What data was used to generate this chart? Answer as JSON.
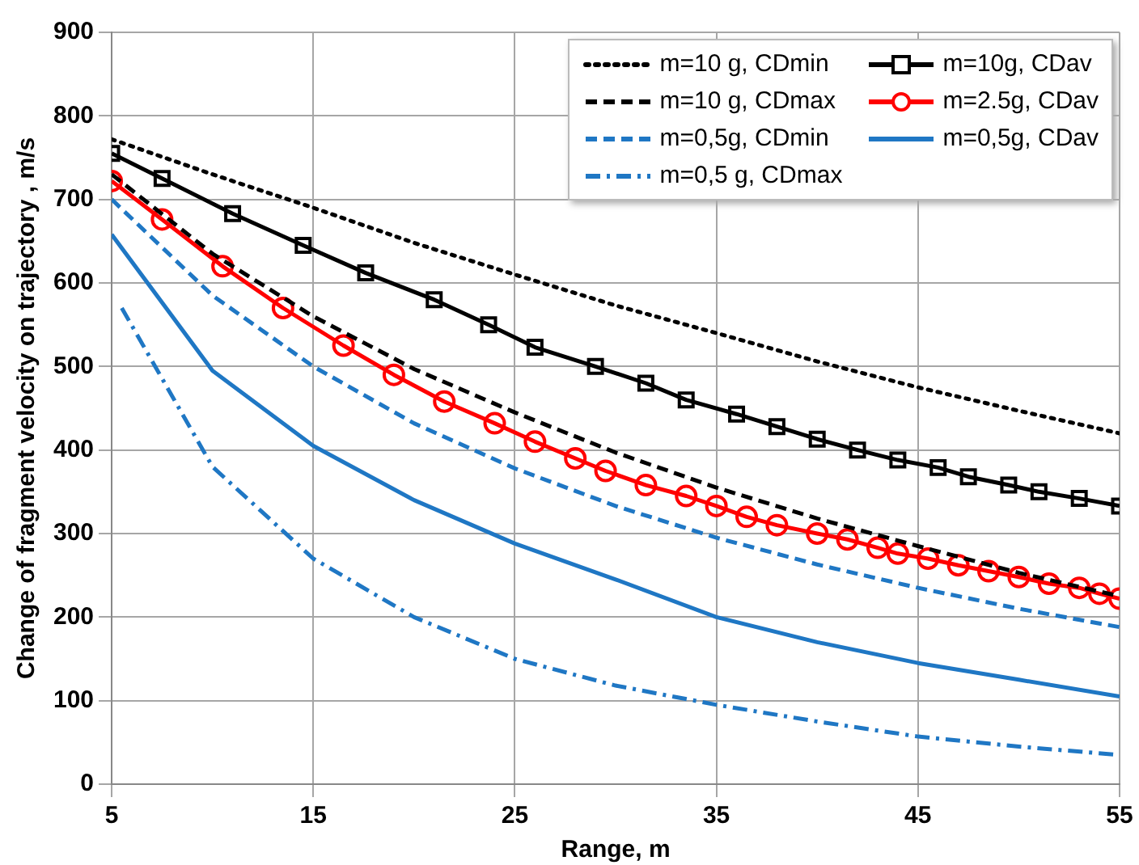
{
  "chart_data": {
    "type": "line",
    "xlabel": "Range, m",
    "ylabel": "Change of fragment velocity on trajectory , m/s",
    "xlim": [
      5,
      55
    ],
    "xticks": [
      5,
      15,
      25,
      35,
      45,
      55
    ],
    "ylim": [
      0,
      900
    ],
    "yticks": [
      0,
      100,
      200,
      300,
      400,
      500,
      600,
      700,
      800,
      900
    ],
    "grid": true,
    "legend": "top right",
    "series": [
      {
        "name": "m=10 g, CDmin",
        "color": "#000000",
        "line_style": "dotted",
        "marker": "none",
        "x": [
          5,
          10,
          15,
          20,
          25,
          30,
          35,
          40,
          45,
          50,
          55
        ],
        "values": [
          772,
          730,
          690,
          648,
          610,
          573,
          540,
          506,
          475,
          447,
          420
        ]
      },
      {
        "name": "m=10g, CDav",
        "color": "#000000",
        "line_style": "solid",
        "marker": "square",
        "x": [
          5,
          7.5,
          11,
          14.5,
          17.6,
          21,
          23.7,
          26,
          29,
          31.5,
          33.5,
          36,
          38,
          40,
          42,
          44,
          46,
          47.5,
          49.5,
          51,
          53,
          55
        ],
        "values": [
          755,
          725,
          683,
          645,
          612,
          580,
          550,
          523,
          500,
          480,
          460,
          443,
          428,
          413,
          400,
          388,
          379,
          368,
          358,
          350,
          342,
          333
        ]
      },
      {
        "name": "m=10 g, CDmax",
        "color": "#000000",
        "line_style": "dashed",
        "marker": "none",
        "x": [
          5,
          10,
          15,
          20,
          25,
          30,
          35,
          40,
          45,
          50,
          55
        ],
        "values": [
          730,
          635,
          560,
          497,
          445,
          397,
          355,
          318,
          285,
          253,
          225
        ]
      },
      {
        "name": "m=2.5g, CDav",
        "color": "#ff0000",
        "line_style": "solid",
        "marker": "circle",
        "x": [
          5,
          7.5,
          10.5,
          13.5,
          16.5,
          19,
          21.5,
          24,
          26,
          28,
          29.5,
          31.5,
          33.5,
          35,
          36.5,
          38,
          40,
          41.5,
          43,
          44,
          45.5,
          47,
          48.5,
          50,
          51.5,
          53,
          54,
          55
        ],
        "values": [
          722,
          676,
          620,
          570,
          525,
          490,
          458,
          432,
          410,
          390,
          375,
          358,
          345,
          333,
          320,
          310,
          300,
          293,
          283,
          276,
          270,
          262,
          255,
          248,
          240,
          235,
          228,
          222
        ]
      },
      {
        "name": "m=0,5g, CDmin",
        "color": "#1f77c4",
        "line_style": "dashed",
        "marker": "none",
        "x": [
          5,
          10,
          15,
          20,
          25,
          30,
          35,
          40,
          45,
          50,
          55
        ],
        "values": [
          700,
          585,
          500,
          432,
          378,
          333,
          295,
          263,
          235,
          210,
          188
        ]
      },
      {
        "name": "m=0,5g, CDav",
        "color": "#1f77c4",
        "line_style": "solid",
        "marker": "none",
        "x": [
          5,
          10,
          15,
          20,
          25,
          30,
          35,
          40,
          45,
          50,
          55
        ],
        "values": [
          658,
          495,
          405,
          340,
          288,
          245,
          200,
          170,
          145,
          125,
          105
        ]
      },
      {
        "name": "m=0,5 g, CDmax",
        "color": "#1f77c4",
        "line_style": "dashdot",
        "marker": "none",
        "x": [
          5.5,
          10,
          15,
          20,
          25,
          30,
          35,
          40,
          45,
          50,
          55
        ],
        "values": [
          570,
          380,
          270,
          200,
          150,
          118,
          95,
          75,
          57,
          45,
          35
        ]
      }
    ]
  }
}
